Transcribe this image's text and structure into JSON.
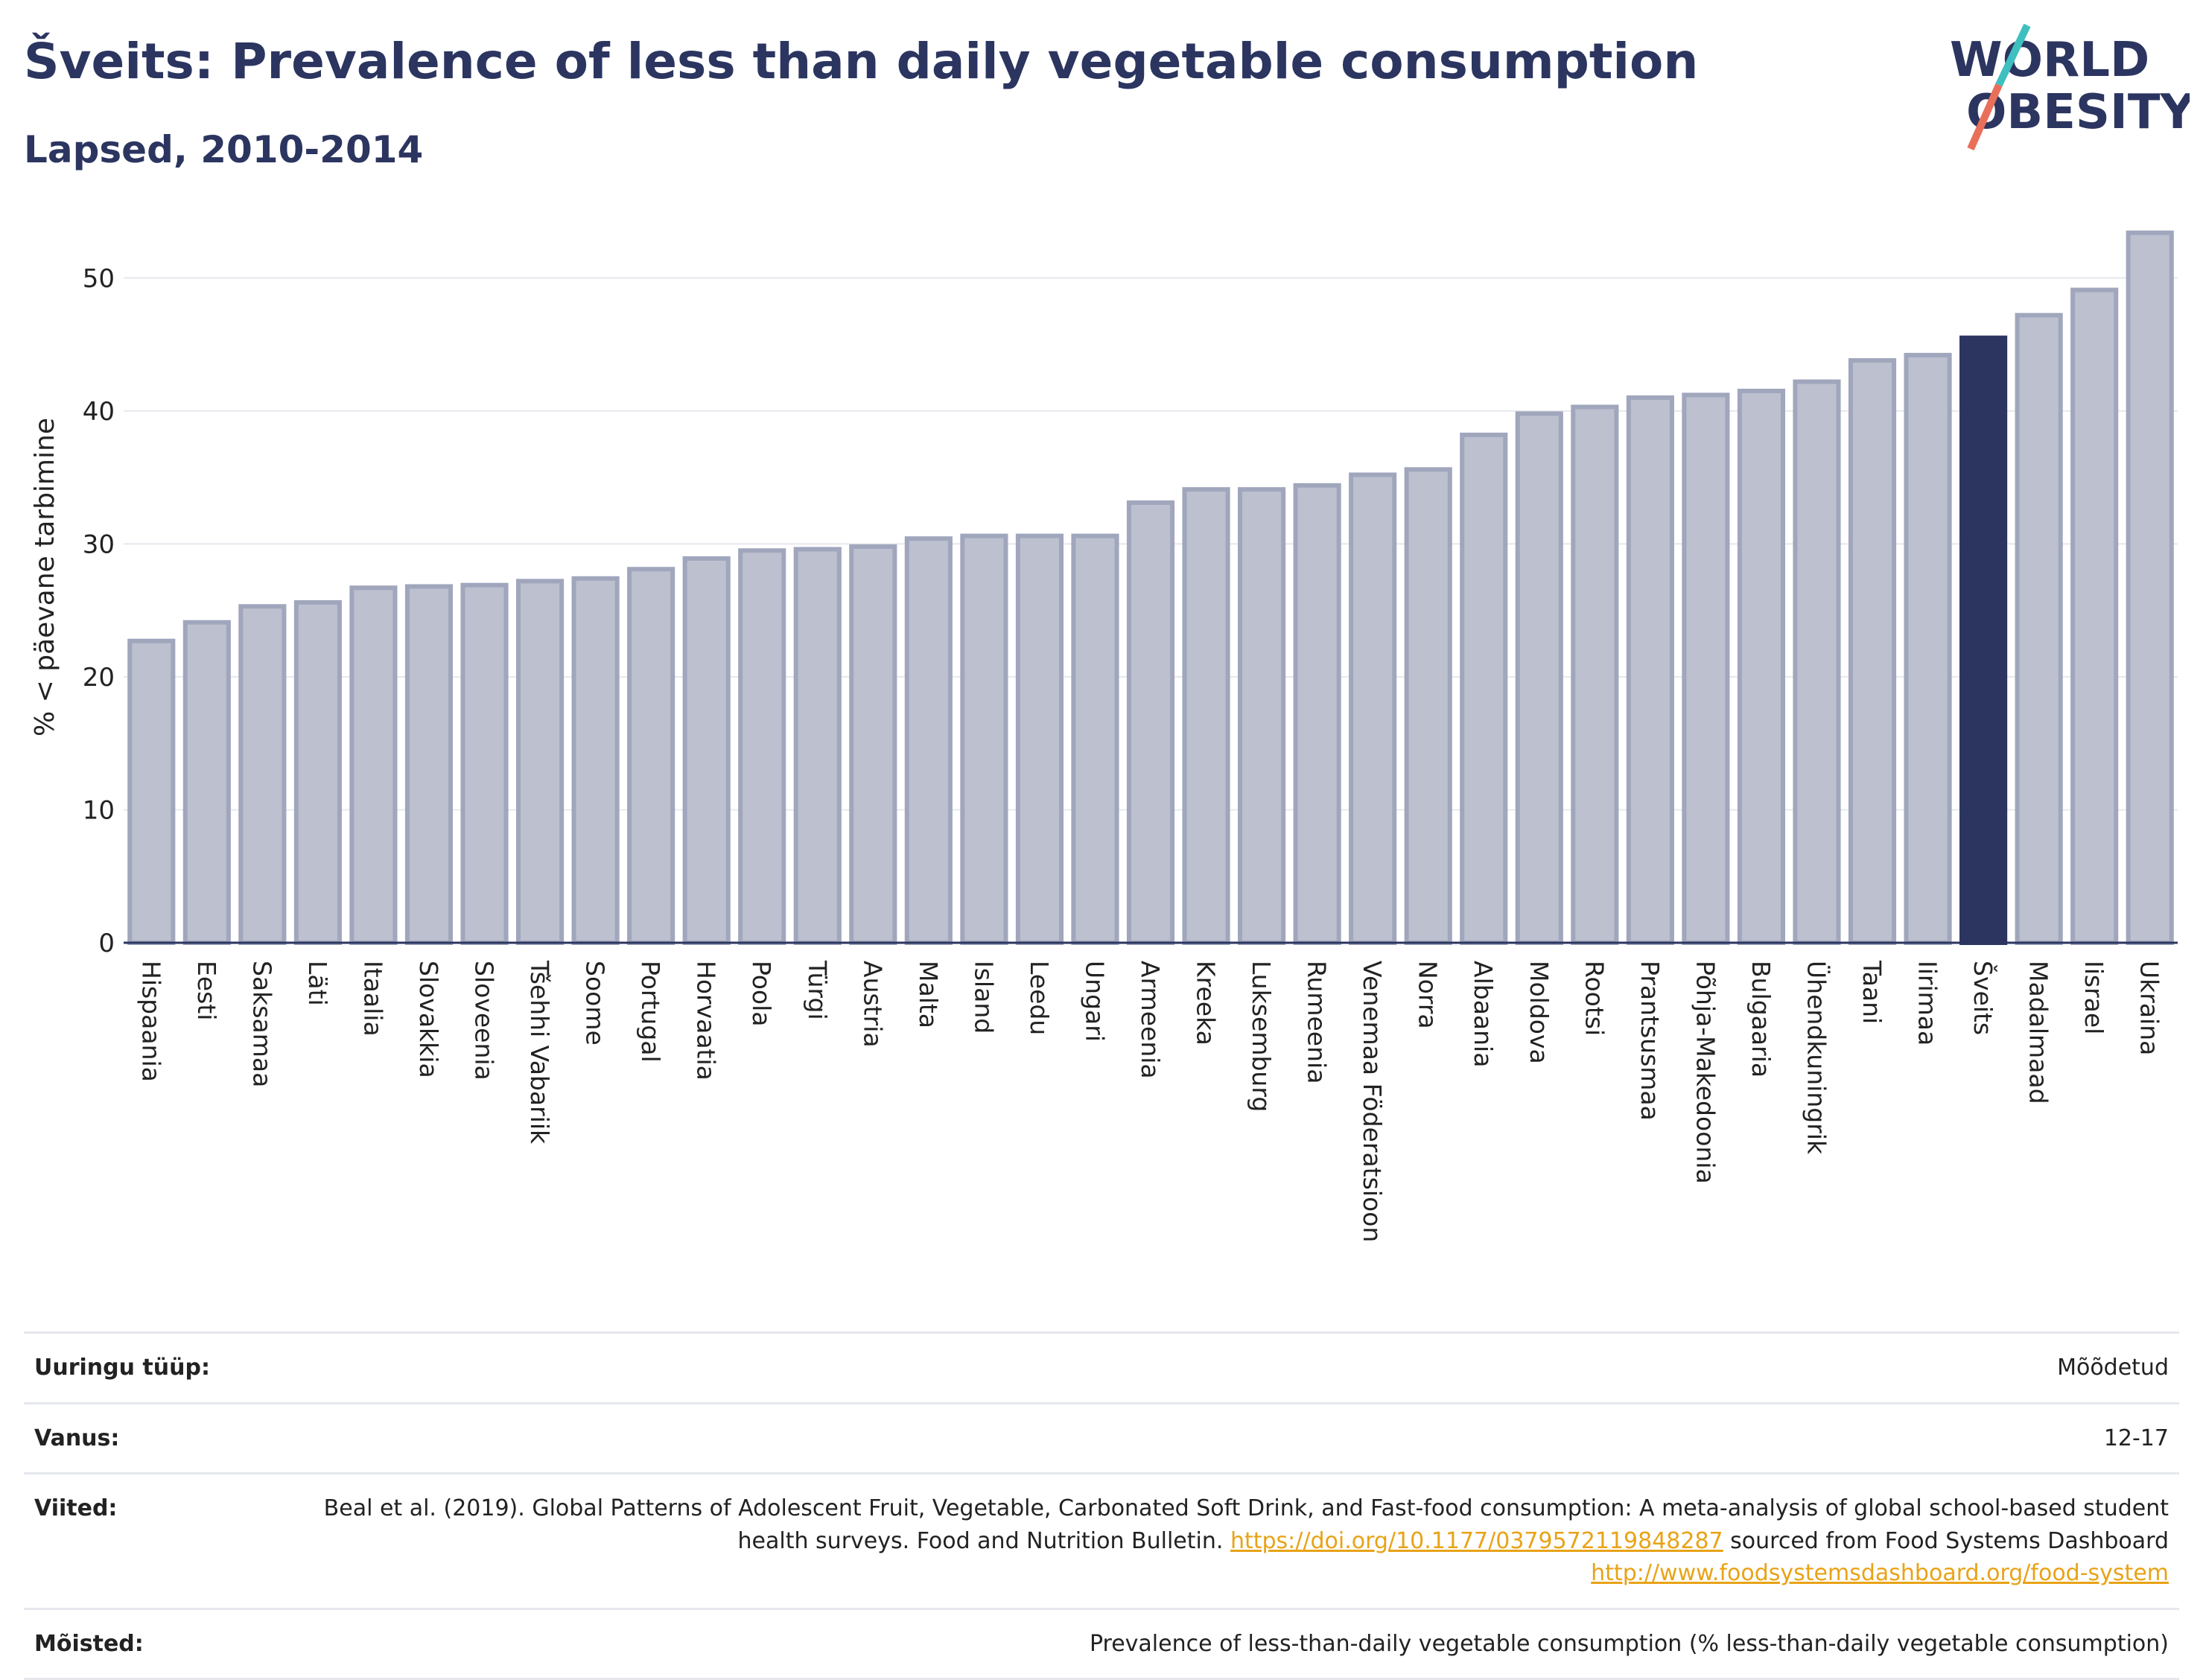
{
  "header": {
    "title": "Šveits: Prevalence of less than daily vegetable consumption",
    "subtitle": "Lapsed, 2010-2014"
  },
  "logo": {
    "line1": "WORLD",
    "line2": "OBESITY"
  },
  "colors": {
    "bar": "#bcc0cf",
    "bar_border": "#a0a6bc",
    "highlight": "#2b3560",
    "accent_teal": "#3fbfbf",
    "accent_red": "#e8705a"
  },
  "chart_data": {
    "type": "bar",
    "ylabel": "% < päevane tarbimine",
    "ylim": [
      0,
      55
    ],
    "yticks": [
      0,
      10,
      20,
      30,
      40,
      50
    ],
    "grid": true,
    "highlight": "Šveits",
    "categories": [
      "Hispaania",
      "Eesti",
      "Saksamaa",
      "Läti",
      "Itaalia",
      "Slovakkia",
      "Sloveenia",
      "Tšehhi Vabariik",
      "Soome",
      "Portugal",
      "Horvaatia",
      "Poola",
      "Türgi",
      "Austria",
      "Malta",
      "Island",
      "Leedu",
      "Ungari",
      "Armeenia",
      "Kreeka",
      "Luksemburg",
      "Rumeenia",
      "Venemaa Föderatsioon",
      "Norra",
      "Albaania",
      "Moldova",
      "Rootsi",
      "Prantsusmaa",
      "Põhja-Makedoonia",
      "Bulgaaria",
      "Ühendkuningrik",
      "Taani",
      "Iirimaa",
      "Šveits",
      "Madalmaad",
      "Iisrael",
      "Ukraina"
    ],
    "values": [
      22.7,
      24.1,
      25.3,
      25.6,
      26.7,
      26.8,
      26.9,
      27.2,
      27.4,
      28.1,
      28.9,
      29.5,
      29.6,
      29.8,
      30.4,
      30.6,
      30.6,
      30.6,
      33.1,
      34.1,
      34.1,
      34.4,
      35.2,
      35.6,
      38.2,
      39.8,
      40.3,
      41.0,
      41.2,
      41.5,
      42.2,
      43.8,
      44.2,
      45.5,
      47.2,
      49.1,
      53.4
    ]
  },
  "meta": {
    "survey_label": "Uuringu tüüp:",
    "survey_value": "Mõõdetud",
    "age_label": "Vanus:",
    "age_value": "12-17",
    "refs_label": "Viited:",
    "refs_text": "Beal et al. (2019). Global Patterns of Adolescent Fruit, Vegetable, Carbonated Soft Drink, and Fast-food consumption: A meta-analysis of global school-based student health surveys. Food and Nutrition Bulletin.",
    "refs_link1": "https://doi.org/10.1177/0379572119848287",
    "refs_mid": "sourced from Food Systems Dashboard",
    "refs_link2": "http://www.foodsystemsdashboard.org/food-system",
    "def_label": "Mõisted:",
    "def_value": "Prevalence of less-than-daily vegetable consumption (% less-than-daily vegetable consumption)"
  }
}
